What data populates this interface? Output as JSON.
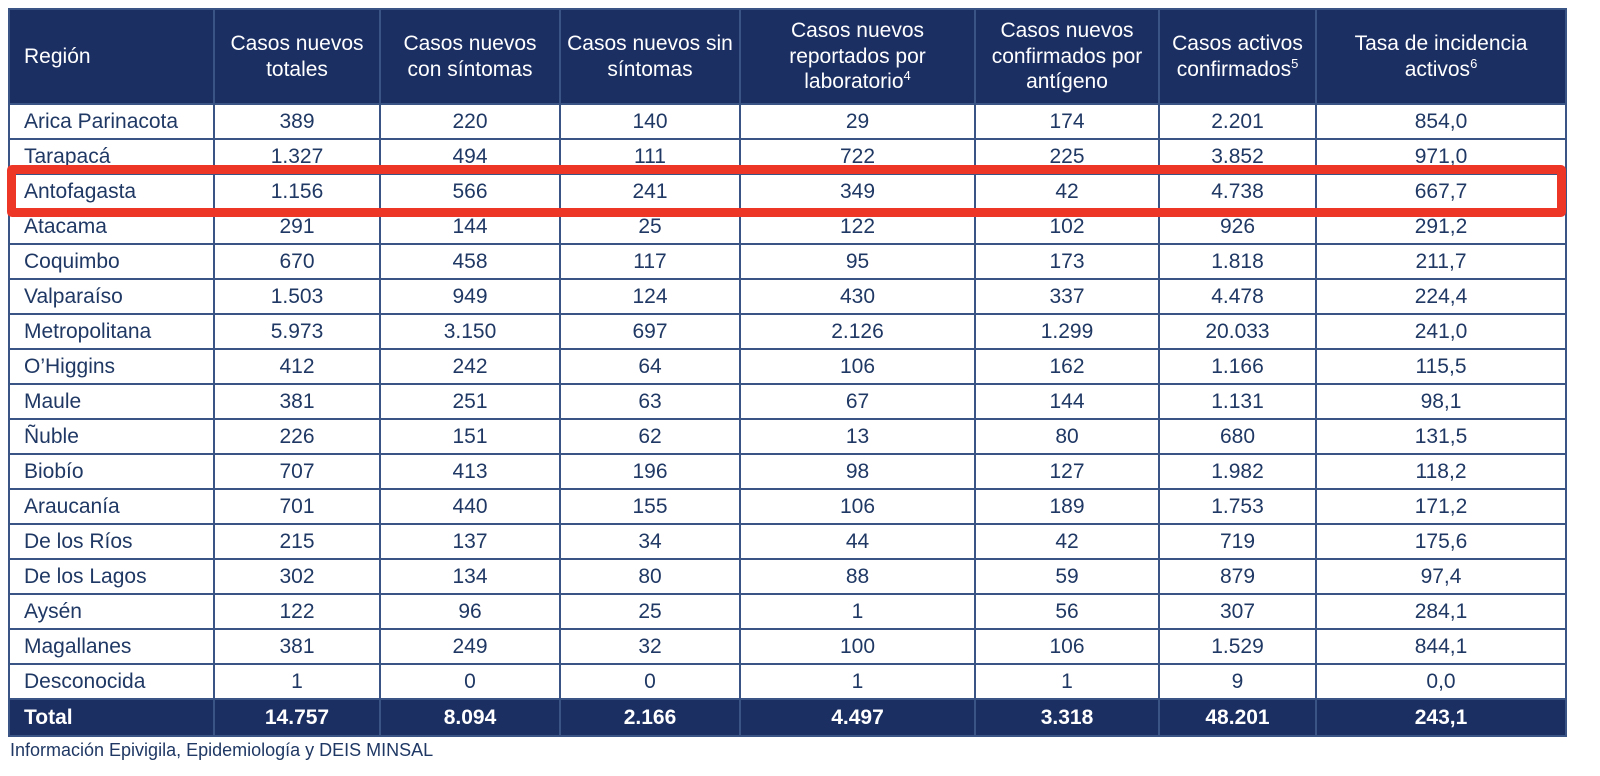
{
  "colors": {
    "header_bg": "#1c2f63",
    "total_bg": "#1c2f63",
    "header_text": "#ffffff",
    "body_text": "#1f3864",
    "border": "#3a5585",
    "highlight_border": "#ee3626"
  },
  "table": {
    "columns": [
      {
        "label": "Región",
        "sup": ""
      },
      {
        "label": "Casos nuevos totales",
        "sup": ""
      },
      {
        "label": "Casos nuevos con síntomas",
        "sup": ""
      },
      {
        "label": "Casos nuevos sin síntomas",
        "sup": ""
      },
      {
        "label": "Casos nuevos reportados por laboratorio",
        "sup": "4"
      },
      {
        "label": "Casos nuevos confirmados por antígeno",
        "sup": ""
      },
      {
        "label": "Casos activos confirmados",
        "sup": "5"
      },
      {
        "label": "Tasa de incidencia activos",
        "sup": "6"
      }
    ],
    "rows": [
      {
        "region": "Arica Parinacota",
        "values": [
          "389",
          "220",
          "140",
          "29",
          "174",
          "2.201",
          "854,0"
        ],
        "highlighted": false
      },
      {
        "region": "Tarapacá",
        "values": [
          "1.327",
          "494",
          "111",
          "722",
          "225",
          "3.852",
          "971,0"
        ],
        "highlighted": false
      },
      {
        "region": "Antofagasta",
        "values": [
          "1.156",
          "566",
          "241",
          "349",
          "42",
          "4.738",
          "667,7"
        ],
        "highlighted": true
      },
      {
        "region": "Atacama",
        "values": [
          "291",
          "144",
          "25",
          "122",
          "102",
          "926",
          "291,2"
        ],
        "highlighted": false
      },
      {
        "region": "Coquimbo",
        "values": [
          "670",
          "458",
          "117",
          "95",
          "173",
          "1.818",
          "211,7"
        ],
        "highlighted": false
      },
      {
        "region": "Valparaíso",
        "values": [
          "1.503",
          "949",
          "124",
          "430",
          "337",
          "4.478",
          "224,4"
        ],
        "highlighted": false
      },
      {
        "region": "Metropolitana",
        "values": [
          "5.973",
          "3.150",
          "697",
          "2.126",
          "1.299",
          "20.033",
          "241,0"
        ],
        "highlighted": false
      },
      {
        "region": "O’Higgins",
        "values": [
          "412",
          "242",
          "64",
          "106",
          "162",
          "1.166",
          "115,5"
        ],
        "highlighted": false
      },
      {
        "region": "Maule",
        "values": [
          "381",
          "251",
          "63",
          "67",
          "144",
          "1.131",
          "98,1"
        ],
        "highlighted": false
      },
      {
        "region": "Ñuble",
        "values": [
          "226",
          "151",
          "62",
          "13",
          "80",
          "680",
          "131,5"
        ],
        "highlighted": false
      },
      {
        "region": "Biobío",
        "values": [
          "707",
          "413",
          "196",
          "98",
          "127",
          "1.982",
          "118,2"
        ],
        "highlighted": false
      },
      {
        "region": "Araucanía",
        "values": [
          "701",
          "440",
          "155",
          "106",
          "189",
          "1.753",
          "171,2"
        ],
        "highlighted": false
      },
      {
        "region": "De los Ríos",
        "values": [
          "215",
          "137",
          "34",
          "44",
          "42",
          "719",
          "175,6"
        ],
        "highlighted": false
      },
      {
        "region": "De los Lagos",
        "values": [
          "302",
          "134",
          "80",
          "88",
          "59",
          "879",
          "97,4"
        ],
        "highlighted": false
      },
      {
        "region": "Aysén",
        "values": [
          "122",
          "96",
          "25",
          "1",
          "56",
          "307",
          "284,1"
        ],
        "highlighted": false
      },
      {
        "region": "Magallanes",
        "values": [
          "381",
          "249",
          "32",
          "100",
          "106",
          "1.529",
          "844,1"
        ],
        "highlighted": false
      },
      {
        "region": "Desconocida",
        "values": [
          "1",
          "0",
          "0",
          "1",
          "1",
          "9",
          "0,0"
        ],
        "highlighted": false
      }
    ],
    "total": {
      "label": "Total",
      "values": [
        "14.757",
        "8.094",
        "2.166",
        "4.497",
        "3.318",
        "48.201",
        "243,1"
      ]
    }
  },
  "footer": {
    "source_note": "Información Epivigila, Epidemiología y DEIS MINSAL"
  }
}
